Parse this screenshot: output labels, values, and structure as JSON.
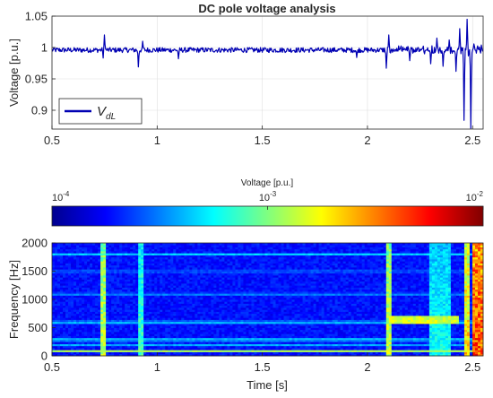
{
  "chart_data": [
    {
      "type": "line",
      "title": "DC pole voltage analysis",
      "xlabel": "",
      "ylabel": "Voltage [p.u.]",
      "xlim": [
        0.5,
        2.55
      ],
      "ylim": [
        0.87,
        1.05
      ],
      "xticks": [
        0.5,
        1,
        1.5,
        2,
        2.5
      ],
      "xtick_labels": [
        "0.5",
        "1",
        "1.5",
        "2",
        "2.5"
      ],
      "yticks": [
        0.9,
        0.95,
        1,
        1.05
      ],
      "ytick_labels": [
        "0.9",
        "0.95",
        "1",
        "1.05"
      ],
      "grid": true,
      "legend_position": "bottom-left",
      "series": [
        {
          "name": "V_dL",
          "legend_main": "V",
          "legend_sub": "dL",
          "color": "#0000b3",
          "baseline": 0.996,
          "noise_band": 0.004,
          "events": [
            {
              "x": 0.745,
              "y": 0.932
            },
            {
              "x": 0.75,
              "y": 1.02
            },
            {
              "x": 0.91,
              "y": 0.969
            },
            {
              "x": 0.93,
              "y": 1.01
            },
            {
              "x": 1.1,
              "y": 0.982
            },
            {
              "x": 1.95,
              "y": 0.984
            },
            {
              "x": 2.09,
              "y": 0.967
            },
            {
              "x": 2.1,
              "y": 1.02
            },
            {
              "x": 2.2,
              "y": 0.979
            },
            {
              "x": 2.3,
              "y": 0.974
            },
            {
              "x": 2.33,
              "y": 1.015
            },
            {
              "x": 2.36,
              "y": 0.97
            },
            {
              "x": 2.39,
              "y": 1.012
            },
            {
              "x": 2.42,
              "y": 0.962
            },
            {
              "x": 2.44,
              "y": 1.03
            },
            {
              "x": 2.46,
              "y": 0.884
            },
            {
              "x": 2.475,
              "y": 1.045
            },
            {
              "x": 2.49,
              "y": 0.871
            }
          ]
        }
      ]
    },
    {
      "type": "heatmap",
      "title": "",
      "xlabel": "Time [s]",
      "ylabel": "Frequency [Hz]",
      "xlim": [
        0.5,
        2.55
      ],
      "ylim": [
        0,
        2000
      ],
      "xticks": [
        0.5,
        1,
        1.5,
        2,
        2.5
      ],
      "xtick_labels": [
        "0.5",
        "1",
        "1.5",
        "2",
        "2.5"
      ],
      "yticks": [
        0,
        500,
        1000,
        1500,
        2000
      ],
      "ytick_labels": [
        "0",
        "500",
        "1000",
        "1500",
        "2000"
      ],
      "colorbar": {
        "label": "Voltage [p.u.]",
        "min": 0.0001,
        "max": 0.01,
        "scale": "log",
        "ticks": [
          {
            "base": "10",
            "exp": "-4"
          },
          {
            "base": "10",
            "exp": "-3"
          },
          {
            "base": "10",
            "exp": "-2"
          }
        ],
        "position": "top"
      },
      "colormap": "jet",
      "background_level": 0.14,
      "bands": [
        {
          "f": 90,
          "level": 0.55
        },
        {
          "f": 190,
          "level": 0.33
        },
        {
          "f": 290,
          "level": 0.4
        },
        {
          "f": 600,
          "level": 0.38
        },
        {
          "f": 1100,
          "level": 0.3
        },
        {
          "f": 1500,
          "level": 0.28
        },
        {
          "f": 1800,
          "level": 0.36
        }
      ],
      "events": [
        {
          "t": 0.745,
          "width": 0.03,
          "level": 0.65
        },
        {
          "t": 0.92,
          "width": 0.03,
          "level": 0.5
        },
        {
          "t": 2.1,
          "width": 0.035,
          "level": 0.65
        },
        {
          "t": 2.35,
          "width": 0.1,
          "level": 0.45
        },
        {
          "t": 2.47,
          "width": 0.02,
          "level": 0.75
        },
        {
          "t": 2.52,
          "width": 0.05,
          "level": 0.92
        }
      ]
    }
  ]
}
